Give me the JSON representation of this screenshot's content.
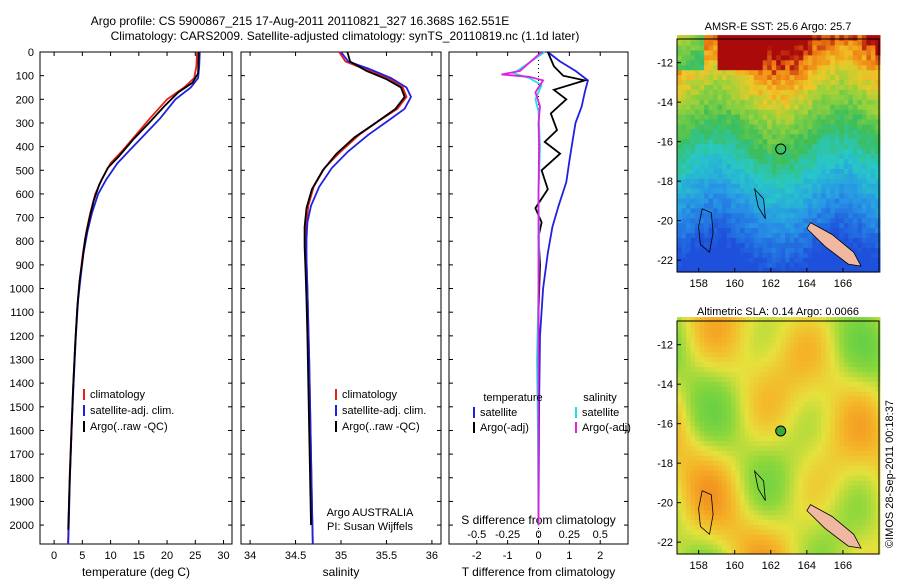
{
  "header": {
    "line1": "Argo profile: CS 5900867_215 17-Aug-2011 20110821_327 16.368S 162.551E",
    "line2": "Climatology: CARS2009. Satellite-adjusted climatology: synTS_20110819.nc (1.1d later)"
  },
  "colors": {
    "climatology": "#e8201a",
    "satellite": "#2020e0",
    "argo": "#000000",
    "sat_sal": "#20e0e0",
    "argo_sal": "#e020e0"
  },
  "depth_axis": {
    "ticks": [
      0,
      100,
      200,
      300,
      400,
      500,
      600,
      700,
      800,
      900,
      1000,
      1100,
      1200,
      1300,
      1400,
      1500,
      1600,
      1700,
      1800,
      1900,
      2000
    ],
    "range": [
      0,
      2080
    ]
  },
  "chart_data": [
    {
      "type": "line",
      "xlabel": "temperature (deg C)",
      "xticks": [
        0,
        5,
        10,
        15,
        20,
        25,
        30
      ],
      "xlim": [
        -2.5,
        31.5
      ],
      "ylim": [
        2080,
        0
      ],
      "legend": {
        "placement": "lower-left",
        "entries": [
          "climatology",
          "satellite-adj. clim.",
          "Argo(..raw -QC)"
        ]
      },
      "series": [
        {
          "name": "climatology",
          "color": "#e8201a",
          "points": [
            [
              25.3,
              0
            ],
            [
              25.2,
              60
            ],
            [
              24.8,
              110
            ],
            [
              23,
              150
            ],
            [
              20,
              200
            ],
            [
              17,
              280
            ],
            [
              14.5,
              350
            ],
            [
              12,
              420
            ],
            [
              10,
              470
            ],
            [
              8.4,
              540
            ],
            [
              7.3,
              600
            ],
            [
              6.4,
              680
            ],
            [
              5.7,
              760
            ],
            [
              5.1,
              850
            ],
            [
              4.6,
              950
            ],
            [
              4.2,
              1050
            ],
            [
              3.8,
              1200
            ],
            [
              3.4,
              1400
            ],
            [
              3.05,
              1600
            ],
            [
              2.75,
              1800
            ],
            [
              2.55,
              2000
            ],
            [
              2.45,
              2080
            ]
          ]
        },
        {
          "name": "satellite-adj. clim.",
          "color": "#2020e0",
          "points": [
            [
              25.8,
              0
            ],
            [
              25.7,
              60
            ],
            [
              25.5,
              110
            ],
            [
              24.2,
              150
            ],
            [
              21.5,
              200
            ],
            [
              18.8,
              280
            ],
            [
              16,
              350
            ],
            [
              13.2,
              420
            ],
            [
              11.2,
              470
            ],
            [
              9.2,
              540
            ],
            [
              7.8,
              600
            ],
            [
              6.7,
              680
            ],
            [
              5.9,
              760
            ],
            [
              5.2,
              850
            ],
            [
              4.7,
              950
            ],
            [
              4.25,
              1050
            ],
            [
              3.85,
              1200
            ],
            [
              3.45,
              1400
            ],
            [
              3.1,
              1600
            ],
            [
              2.8,
              1800
            ],
            [
              2.6,
              2000
            ],
            [
              2.5,
              2080
            ]
          ]
        },
        {
          "name": "Argo(..raw -QC)",
          "color": "#000000",
          "points": [
            [
              25.6,
              0
            ],
            [
              25.5,
              90
            ],
            [
              24.5,
              130
            ],
            [
              22,
              170
            ],
            [
              19.5,
              230
            ],
            [
              16.8,
              300
            ],
            [
              14,
              370
            ],
            [
              11.5,
              440
            ],
            [
              9.5,
              490
            ],
            [
              8,
              560
            ],
            [
              7,
              630
            ],
            [
              6.2,
              710
            ],
            [
              5.5,
              790
            ],
            [
              5,
              880
            ],
            [
              4.5,
              970
            ],
            [
              4.1,
              1080
            ],
            [
              3.7,
              1250
            ],
            [
              3.3,
              1450
            ],
            [
              3,
              1650
            ],
            [
              2.7,
              1850
            ],
            [
              2.5,
              2020
            ]
          ]
        }
      ]
    },
    {
      "type": "line",
      "xlabel": "salinity",
      "xticks": [
        34,
        34.5,
        35,
        35.5,
        36
      ],
      "xlim": [
        33.9,
        36.1
      ],
      "ylim": [
        2080,
        0
      ],
      "legend": {
        "placement": "lower-right",
        "entries": [
          "climatology",
          "satellite-adj. clim.",
          "Argo(..raw -QC)"
        ]
      },
      "annotations": [
        "Argo AUSTRALIA",
        "PI: Susan Wijffels"
      ],
      "series": [
        {
          "name": "climatology",
          "color": "#e8201a",
          "points": [
            [
              34.98,
              0
            ],
            [
              35.05,
              40
            ],
            [
              35.25,
              70
            ],
            [
              35.52,
              110
            ],
            [
              35.68,
              150
            ],
            [
              35.72,
              190
            ],
            [
              35.62,
              240
            ],
            [
              35.42,
              290
            ],
            [
              35.2,
              350
            ],
            [
              35.0,
              420
            ],
            [
              34.82,
              490
            ],
            [
              34.7,
              570
            ],
            [
              34.64,
              650
            ],
            [
              34.62,
              720
            ],
            [
              34.61,
              790
            ],
            [
              34.62,
              880
            ],
            [
              34.63,
              1000
            ],
            [
              34.64,
              1150
            ],
            [
              34.65,
              1300
            ],
            [
              34.66,
              1500
            ],
            [
              34.67,
              1700
            ],
            [
              34.68,
              1900
            ],
            [
              34.69,
              2080
            ]
          ]
        },
        {
          "name": "satellite-adj. clim.",
          "color": "#2020e0",
          "points": [
            [
              35.0,
              0
            ],
            [
              35.08,
              40
            ],
            [
              35.3,
              70
            ],
            [
              35.55,
              110
            ],
            [
              35.72,
              150
            ],
            [
              35.77,
              190
            ],
            [
              35.7,
              240
            ],
            [
              35.52,
              290
            ],
            [
              35.3,
              350
            ],
            [
              35.08,
              420
            ],
            [
              34.9,
              490
            ],
            [
              34.76,
              570
            ],
            [
              34.67,
              650
            ],
            [
              34.63,
              720
            ],
            [
              34.62,
              790
            ],
            [
              34.62,
              880
            ],
            [
              34.63,
              1000
            ],
            [
              34.64,
              1150
            ],
            [
              34.65,
              1300
            ],
            [
              34.66,
              1500
            ],
            [
              34.67,
              1700
            ],
            [
              34.68,
              1900
            ],
            [
              34.69,
              2080
            ]
          ]
        },
        {
          "name": "Argo(..raw -QC)",
          "color": "#000000",
          "points": [
            [
              35.07,
              0
            ],
            [
              35.1,
              40
            ],
            [
              35.28,
              80
            ],
            [
              35.5,
              115
            ],
            [
              35.66,
              150
            ],
            [
              35.7,
              190
            ],
            [
              35.6,
              240
            ],
            [
              35.38,
              300
            ],
            [
              35.15,
              360
            ],
            [
              34.95,
              430
            ],
            [
              34.8,
              500
            ],
            [
              34.68,
              580
            ],
            [
              34.62,
              660
            ],
            [
              34.6,
              740
            ],
            [
              34.6,
              820
            ],
            [
              34.61,
              920
            ],
            [
              34.62,
              1050
            ],
            [
              34.63,
              1200
            ],
            [
              34.64,
              1400
            ],
            [
              34.65,
              1600
            ],
            [
              34.66,
              1800
            ],
            [
              34.67,
              2000
            ]
          ]
        }
      ]
    },
    {
      "type": "line",
      "xlabel": "T difference from climatology",
      "xlabel2": "S difference from climatology",
      "xticks_T": [
        -2,
        -1,
        0,
        1,
        2
      ],
      "xticks_S": [
        -0.5,
        -0.25,
        0,
        0.25,
        0.5
      ],
      "xlim": [
        -2.9,
        2.9
      ],
      "ylim": [
        2080,
        0
      ],
      "legend": {
        "placement": "lower-center",
        "headers": [
          "temperature",
          "salinity"
        ],
        "entries": [
          "satellite",
          "Argo(-adj)",
          "satellite",
          "Argo(-adj)"
        ]
      },
      "series": [
        {
          "name": "satellite",
          "color": "#2020e0",
          "points": [
            [
              0.3,
              0
            ],
            [
              0.7,
              40
            ],
            [
              1.2,
              80
            ],
            [
              1.6,
              120
            ],
            [
              1.5,
              170
            ],
            [
              1.4,
              230
            ],
            [
              1.2,
              300
            ],
            [
              1.1,
              380
            ],
            [
              1.0,
              460
            ],
            [
              0.9,
              550
            ],
            [
              0.65,
              650
            ],
            [
              0.45,
              740
            ],
            [
              0.3,
              850
            ],
            [
              0.15,
              1000
            ],
            [
              0.05,
              1200
            ],
            [
              0.02,
              1500
            ],
            [
              0.0,
              2000
            ]
          ]
        },
        {
          "name": "Argo(-adj)",
          "color": "#000000",
          "points": [
            [
              0.3,
              0
            ],
            [
              0.5,
              60
            ],
            [
              0.8,
              100
            ],
            [
              1.5,
              120
            ],
            [
              0.5,
              160
            ],
            [
              0.9,
              200
            ],
            [
              0.4,
              260
            ],
            [
              0.6,
              330
            ],
            [
              0.2,
              380
            ],
            [
              0.7,
              430
            ],
            [
              0.1,
              500
            ],
            [
              0.3,
              580
            ],
            [
              -0.1,
              660
            ],
            [
              0.1,
              720
            ],
            [
              0.0,
              780
            ],
            [
              0.05,
              900
            ],
            [
              0.0,
              1100
            ],
            [
              0.0,
              1500
            ],
            [
              0.0,
              2000
            ]
          ]
        },
        {
          "name": "satellite",
          "color": "#20e0e0",
          "points": [
            [
              0.2,
              0
            ],
            [
              -0.8,
              90
            ],
            [
              -0.3,
              110
            ],
            [
              0.1,
              140
            ],
            [
              -0.1,
              200
            ],
            [
              0.0,
              250
            ],
            [
              0.05,
              400
            ],
            [
              0.0,
              600
            ],
            [
              0.02,
              800
            ],
            [
              0.0,
              1000
            ],
            [
              -0.05,
              1300
            ],
            [
              -0.02,
              1600
            ],
            [
              0.0,
              2000
            ]
          ]
        },
        {
          "name": "Argo(-adj)",
          "color": "#e020e0",
          "points": [
            [
              0.1,
              0
            ],
            [
              -0.6,
              80
            ],
            [
              -1.2,
              95
            ],
            [
              -0.3,
              105
            ],
            [
              0.15,
              120
            ],
            [
              -0.1,
              170
            ],
            [
              0.05,
              230
            ],
            [
              0.0,
              300
            ],
            [
              0.02,
              400
            ],
            [
              0.0,
              600
            ],
            [
              0.0,
              1000
            ],
            [
              0.0,
              1500
            ],
            [
              0.0,
              2000
            ]
          ]
        }
      ]
    },
    {
      "type": "heatmap",
      "title": "AMSR-E SST: 25.6 Argo: 25.7",
      "xticks": [
        158,
        160,
        162,
        164,
        166
      ],
      "yticks": [
        -12,
        -14,
        -16,
        -18,
        -20,
        -22
      ],
      "xlim": [
        156.8,
        168
      ],
      "ylim": [
        -22.6,
        -10.8
      ],
      "marker": {
        "lon": 162.55,
        "lat": -16.37,
        "style": "open"
      }
    },
    {
      "type": "heatmap",
      "title": "Altimetric SLA: 0.14 Argo: 0.0066",
      "xticks": [
        158,
        160,
        162,
        164,
        166
      ],
      "yticks": [
        -12,
        -14,
        -16,
        -18,
        -20,
        -22
      ],
      "xlim": [
        156.8,
        168
      ],
      "ylim": [
        -22.6,
        -10.8
      ],
      "marker": {
        "lon": 162.55,
        "lat": -16.37,
        "style": "filled"
      }
    }
  ],
  "footer": {
    "stamp": "©IMOS 28-Sep-2011 00:18:37"
  }
}
